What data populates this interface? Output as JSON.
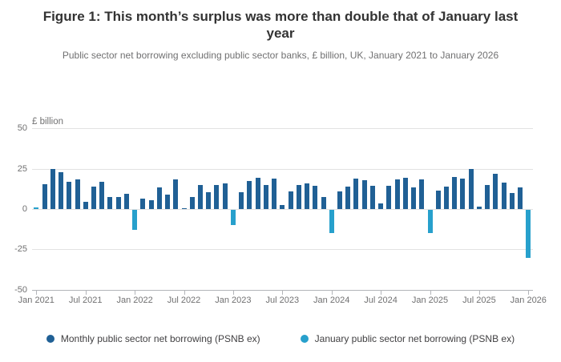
{
  "header": {
    "title": "Figure 1: This month’s surplus was more than double that of January last year",
    "subtitle": "Public sector net borrowing excluding public sector banks, £ billion, UK, January 2021 to January 2026"
  },
  "chart_data": {
    "type": "bar",
    "title": "Figure 1: This month’s surplus was more than double that of January last year",
    "subtitle": "Public sector net borrowing excluding public sector banks, £ billion, UK, January 2021 to January 2026",
    "unit_label": "£ billion",
    "ylabel": "£ billion",
    "ylim": [
      -50,
      50
    ],
    "y_ticks": [
      50,
      25,
      0,
      -25,
      -50
    ],
    "x_tick_labels": [
      "Jan 2021",
      "Jul 2021",
      "Jan 2022",
      "Jul 2022",
      "Jan 2023",
      "Jul 2023",
      "Jan 2024",
      "Jul 2024",
      "Jan 2025",
      "Jul 2025",
      "Jan 2026"
    ],
    "grid": "horizontal",
    "legend_position": "bottom",
    "categories": [
      "Jan 2021",
      "Feb 2021",
      "Mar 2021",
      "Apr 2021",
      "May 2021",
      "Jun 2021",
      "Jul 2021",
      "Aug 2021",
      "Sep 2021",
      "Oct 2021",
      "Nov 2021",
      "Dec 2021",
      "Jan 2022",
      "Feb 2022",
      "Mar 2022",
      "Apr 2022",
      "May 2022",
      "Jun 2022",
      "Jul 2022",
      "Aug 2022",
      "Sep 2022",
      "Oct 2022",
      "Nov 2022",
      "Dec 2022",
      "Jan 2023",
      "Feb 2023",
      "Mar 2023",
      "Apr 2023",
      "May 2023",
      "Jun 2023",
      "Jul 2023",
      "Aug 2023",
      "Sep 2023",
      "Oct 2023",
      "Nov 2023",
      "Dec 2023",
      "Jan 2024",
      "Feb 2024",
      "Mar 2024",
      "Apr 2024",
      "May 2024",
      "Jun 2024",
      "Jul 2024",
      "Aug 2024",
      "Sep 2024",
      "Oct 2024",
      "Nov 2024",
      "Dec 2024",
      "Jan 2025",
      "Feb 2025",
      "Mar 2025",
      "Apr 2025",
      "May 2025",
      "Jun 2025",
      "Jul 2025",
      "Aug 2025",
      "Sep 2025",
      "Oct 2025",
      "Nov 2025",
      "Dec 2025",
      "Jan 2026"
    ],
    "values": [
      1.0,
      15.2,
      24.9,
      23.1,
      17.1,
      18.6,
      4.6,
      14.0,
      16.8,
      7.7,
      7.5,
      9.7,
      -12.2,
      6.7,
      5.4,
      13.4,
      9.1,
      18.6,
      0.6,
      7.6,
      15.0,
      10.5,
      15.1,
      15.8,
      -9.2,
      10.5,
      17.6,
      19.5,
      15.0,
      19.0,
      2.3,
      10.9,
      14.9,
      16.0,
      14.5,
      7.4,
      -14.2,
      10.8,
      14.0,
      19.1,
      17.8,
      14.5,
      3.6,
      14.3,
      18.6,
      19.3,
      13.2,
      18.6,
      -14.6,
      11.7,
      13.7,
      19.7,
      18.7,
      24.9,
      1.5,
      14.9,
      21.8,
      16.2,
      10.2,
      13.2,
      -30.0
    ],
    "series": [
      {
        "name": "Monthly public sector net borrowing (PSNB ex)",
        "color": "#206095"
      },
      {
        "name": "January public sector net borrowing (PSNB ex)",
        "color": "#27a0cc"
      }
    ]
  },
  "colors": {
    "dark_blue": "#206095",
    "light_blue": "#27a0cc",
    "title_text": "#333333",
    "muted_text": "#707071",
    "legend_text": "#414042",
    "gridline": "#e2e2e2",
    "axis_line": "#b3b5b9"
  }
}
